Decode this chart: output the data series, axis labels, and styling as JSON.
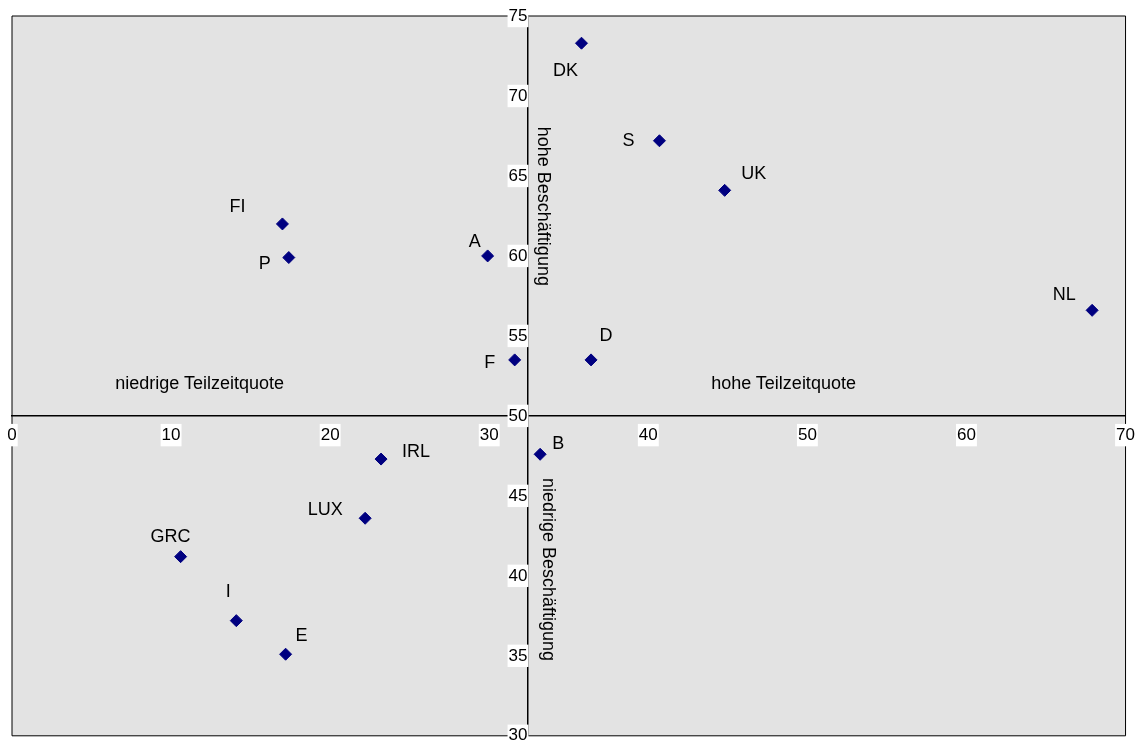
{
  "chart_data": {
    "type": "scatter",
    "marker": "diamond",
    "grid": false,
    "legend": false,
    "series": [
      {
        "color": "#000080",
        "x": [
          35.8,
          40.7,
          44.8,
          67.9,
          17.0,
          17.4,
          29.9,
          31.6,
          36.4,
          33.2,
          23.2,
          22.2,
          10.6,
          14.1,
          17.2
        ],
        "values": [
          73.3,
          67.2,
          64.1,
          56.6,
          62.0,
          59.9,
          60.0,
          53.5,
          53.5,
          47.6,
          47.3,
          43.6,
          41.2,
          37.2,
          35.1
        ]
      }
    ],
    "xlim": [
      0,
      70
    ],
    "xticks": [
      0,
      10,
      20,
      30,
      40,
      50,
      60,
      70
    ],
    "ylim": [
      30,
      75
    ],
    "yticks": [
      30,
      35,
      40,
      45,
      50,
      55,
      60,
      65,
      70,
      75
    ],
    "annotations": [
      {
        "text": "DK",
        "x": 35.8,
        "y": 73.3
      },
      {
        "text": "S",
        "x": 40.7,
        "y": 67.2
      },
      {
        "text": "UK",
        "x": 44.8,
        "y": 64.1
      },
      {
        "text": "NL",
        "x": 67.9,
        "y": 56.6
      },
      {
        "text": "FI",
        "x": 17.0,
        "y": 62.0
      },
      {
        "text": "P",
        "x": 17.4,
        "y": 59.9
      },
      {
        "text": "A",
        "x": 29.9,
        "y": 60.0
      },
      {
        "text": "F",
        "x": 31.6,
        "y": 53.5
      },
      {
        "text": "D",
        "x": 36.4,
        "y": 53.5
      },
      {
        "text": "B",
        "x": 33.2,
        "y": 47.6
      },
      {
        "text": "IRL",
        "x": 23.2,
        "y": 47.3
      },
      {
        "text": "LUX",
        "x": 22.2,
        "y": 43.6
      },
      {
        "text": "GRC",
        "x": 10.6,
        "y": 41.2
      },
      {
        "text": "I",
        "x": 14.1,
        "y": 37.2
      },
      {
        "text": "E",
        "x": 17.2,
        "y": 35.1
      },
      "niedrige Teilzeitquote",
      "hohe Teilzeitquote",
      "hohe Beschäftigung",
      "niedrige Beschäftigung"
    ]
  }
}
